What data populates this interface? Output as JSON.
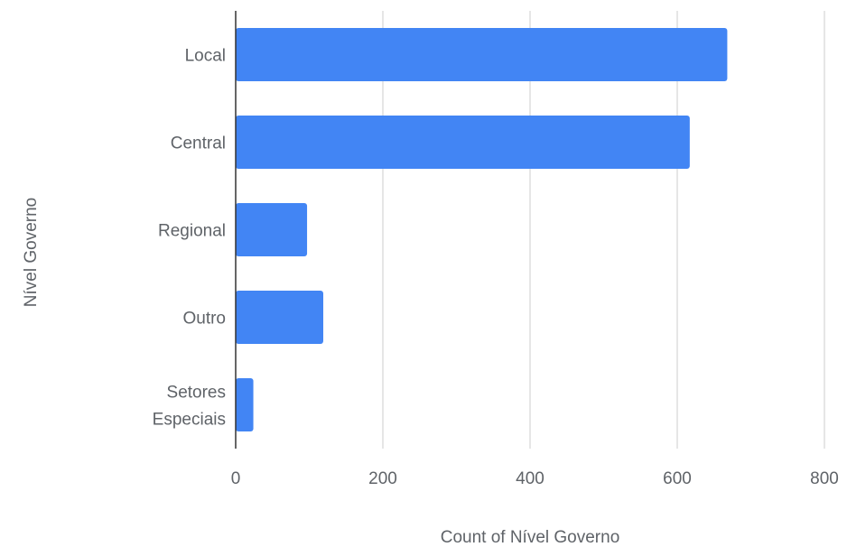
{
  "chart_data": {
    "type": "bar",
    "orientation": "horizontal",
    "categories": [
      "Local",
      "Central",
      "Regional",
      "Outro",
      "Setores Especiais"
    ],
    "values": [
      668,
      617,
      97,
      119,
      24
    ],
    "xlabel": "Count of Nível Governo",
    "ylabel": "Nível Governo",
    "xlim": [
      0,
      800
    ],
    "xticks": [
      "0",
      "200",
      "400",
      "600",
      "800"
    ],
    "grid": "vertical",
    "colors": {
      "bar": "#4285f4",
      "grid": "#cccccc",
      "axis": "#333333",
      "text": "#5f6368"
    }
  }
}
